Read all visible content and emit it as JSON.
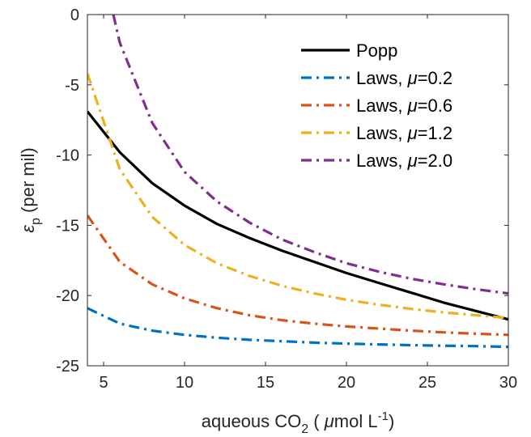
{
  "chart_data": {
    "type": "line",
    "title": "",
    "xlabel": "aqueous CO",
    "xlabel_sub": "2",
    "xlabel_unit_prefix": " ( ",
    "xlabel_mu": "μ",
    "xlabel_unit": "mol L",
    "xlabel_sup": "-1",
    "xlabel_close": ")",
    "ylabel_symbol": "ε",
    "ylabel_sub": "p",
    "ylabel_rest": " (per mil)",
    "xlim": [
      4,
      30
    ],
    "ylim": [
      -25,
      0
    ],
    "xticks": [
      5,
      10,
      15,
      20,
      25,
      30
    ],
    "yticks": [
      0,
      -5,
      -10,
      -15,
      -20,
      -25
    ],
    "grid": false,
    "legend_position": "top-right",
    "x": [
      4,
      6,
      8,
      10,
      12,
      14,
      16,
      18,
      20,
      22,
      24,
      26,
      28,
      30
    ],
    "series": [
      {
        "name": "Popp",
        "style": "solid",
        "color": "#000000",
        "values": [
          -6.9,
          -9.8,
          -12.0,
          -13.6,
          -14.9,
          -15.9,
          -16.8,
          -17.6,
          -18.4,
          -19.1,
          -19.8,
          -20.5,
          -21.1,
          -21.7
        ]
      },
      {
        "name_prefix": "Laws, ",
        "name_mu": "μ",
        "name_suffix": "=0.2",
        "style": "dashdot",
        "color": "#0072bd",
        "values": [
          -20.9,
          -22.0,
          -22.5,
          -22.8,
          -23.0,
          -23.15,
          -23.25,
          -23.35,
          -23.42,
          -23.48,
          -23.53,
          -23.57,
          -23.6,
          -23.65
        ]
      },
      {
        "name_prefix": "Laws, ",
        "name_mu": "μ",
        "name_suffix": "=0.6",
        "style": "dashdot",
        "color": "#d95319",
        "values": [
          -14.3,
          -17.6,
          -19.2,
          -20.2,
          -20.9,
          -21.4,
          -21.75,
          -22.0,
          -22.2,
          -22.35,
          -22.5,
          -22.62,
          -22.72,
          -22.8
        ]
      },
      {
        "name_prefix": "Laws, ",
        "name_mu": "μ",
        "name_suffix": "=1.2",
        "style": "dashdot",
        "color": "#edb120",
        "values": [
          -4.2,
          -11.0,
          -14.4,
          -16.4,
          -17.7,
          -18.6,
          -19.3,
          -19.85,
          -20.3,
          -20.65,
          -20.95,
          -21.2,
          -21.4,
          -21.6
        ]
      },
      {
        "name_prefix": "Laws, ",
        "name_mu": "μ",
        "name_suffix": "=2.0",
        "style": "dashdot",
        "color": "#7e2f8e",
        "values": [
          null,
          -2.0,
          -7.7,
          -11.2,
          -13.3,
          -14.8,
          -16.0,
          -16.9,
          -17.7,
          -18.3,
          -18.8,
          -19.2,
          -19.55,
          -19.85
        ],
        "start": [
          5.6,
          0
        ]
      }
    ]
  }
}
